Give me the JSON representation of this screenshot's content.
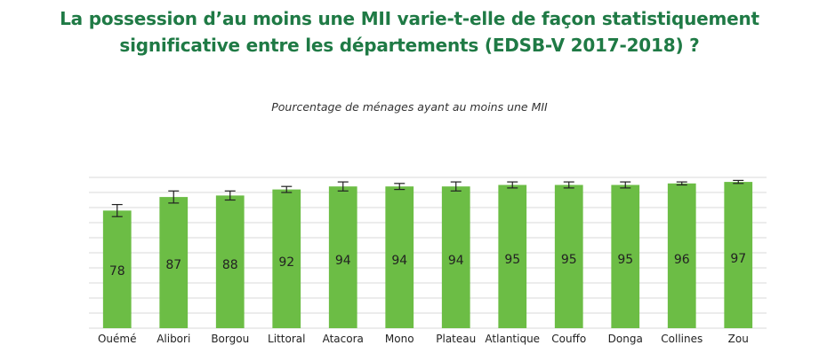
{
  "header": {
    "title_line1": "La possession d’au moins une MII varie-t-elle de façon statistiquement",
    "title_line2": "significative entre les départements (EDSB-V 2017-2018) ?"
  },
  "chart_data": {
    "type": "bar",
    "title": "Pourcentage de ménages ayant au moins une MII",
    "categories": [
      "Ouémé",
      "Alibori",
      "Borgou",
      "Littoral",
      "Atacora",
      "Mono",
      "Plateau",
      "Atlantique",
      "Couffo",
      "Donga",
      "Collines",
      "Zou"
    ],
    "values": [
      78,
      87,
      88,
      92,
      94,
      94,
      94,
      95,
      95,
      95,
      96,
      97
    ],
    "error_bars": [
      [
        74,
        82
      ],
      [
        83,
        91
      ],
      [
        85,
        91
      ],
      [
        90,
        94
      ],
      [
        91,
        97
      ],
      [
        92,
        96
      ],
      [
        91,
        97
      ],
      [
        93,
        97
      ],
      [
        93,
        97
      ],
      [
        93,
        97
      ],
      [
        95,
        97
      ],
      [
        96,
        98
      ]
    ],
    "ylim": [
      0,
      100
    ],
    "grid": true,
    "bar_color": "#6cbd45",
    "error_color": "#222222"
  }
}
